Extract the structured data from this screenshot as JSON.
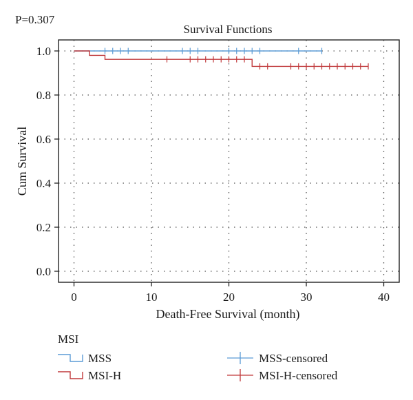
{
  "p_value": "P=0.307",
  "chart_data": {
    "type": "line",
    "subtype": "kaplan-meier",
    "title": "Survival Functions",
    "xlabel": "Death-Free Survival (month)",
    "ylabel": "Cum Survival",
    "xlim": [
      -2,
      42
    ],
    "ylim": [
      -0.05,
      1.05
    ],
    "x_ticks": [
      0,
      10,
      20,
      30,
      40
    ],
    "y_ticks": [
      0.0,
      0.2,
      0.4,
      0.6,
      0.8,
      1.0
    ],
    "x_tick_labels": [
      "0",
      "10",
      "20",
      "30",
      "40"
    ],
    "y_tick_labels": [
      "0.0",
      "0.2",
      "0.4",
      "0.6",
      "0.8",
      "1.0"
    ],
    "grid": "dotted",
    "legend": {
      "title": "MSI",
      "position": "bottom",
      "entries": [
        "MSS",
        "MSI-H",
        "MSS-censored",
        "MSI-H-censored"
      ]
    },
    "series": [
      {
        "name": "MSS",
        "color": "#5b9bd5",
        "steps": [
          [
            0,
            1.0
          ],
          [
            32,
            1.0
          ]
        ],
        "censored": [
          4,
          5,
          6,
          7,
          14,
          15,
          16,
          20,
          21,
          22,
          23,
          24,
          29,
          32
        ]
      },
      {
        "name": "MSI-H",
        "color": "#c0393b",
        "steps": [
          [
            0,
            1.0
          ],
          [
            2,
            0.98
          ],
          [
            4,
            0.962
          ],
          [
            23,
            0.93
          ],
          [
            38,
            0.93
          ]
        ],
        "censored": [
          12,
          15,
          16,
          17,
          18,
          19,
          20,
          21,
          22,
          24,
          25,
          28,
          29,
          30,
          31,
          32,
          33,
          34,
          35,
          36,
          37,
          38
        ]
      }
    ]
  }
}
